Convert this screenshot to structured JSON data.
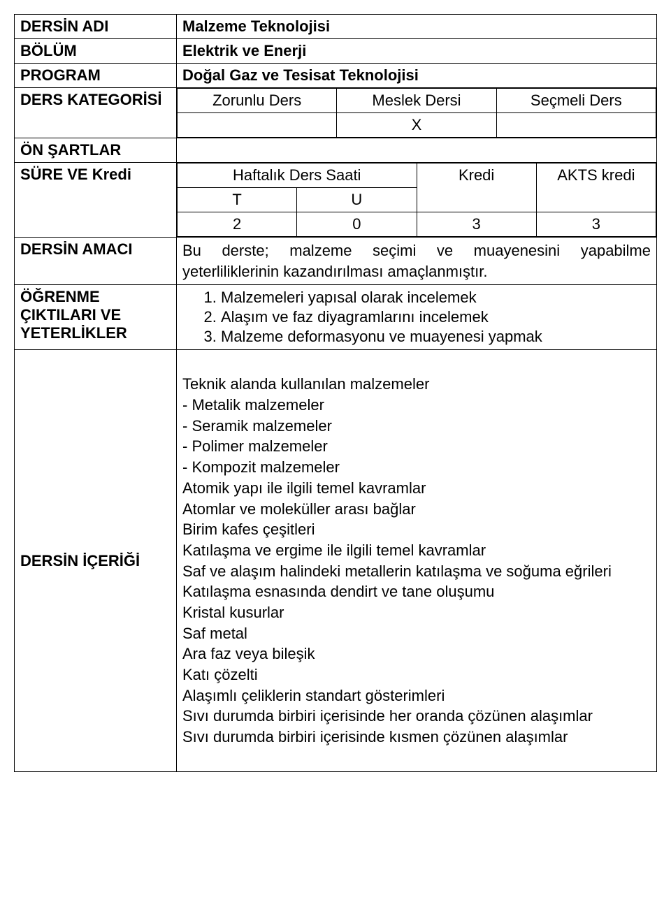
{
  "labels": {
    "dersin_adi": "DERSİN ADI",
    "bolum": "BÖLÜM",
    "program": "PROGRAM",
    "ders_kategorisi": "DERS KATEGORİSİ",
    "on_sartlar": "ÖN ŞARTLAR",
    "sure_ve_kredi": "SÜRE VE Kredi",
    "dersin_amaci": "DERSİN AMACI",
    "ogrenme_ciktilari": "ÖĞRENME ÇIKTILARI VE YETERLİKLER",
    "dersin_icerigi": "DERSİN İÇERİĞİ"
  },
  "values": {
    "dersin_adi": "Malzeme Teknolojisi",
    "bolum": "Elektrik ve Enerji",
    "program": "Doğal Gaz ve Tesisat Teknolojisi",
    "on_sartlar": ""
  },
  "kategori": {
    "headers": [
      "Zorunlu Ders",
      "Meslek Dersi",
      "Seçmeli Ders"
    ],
    "values": [
      "",
      "X",
      ""
    ]
  },
  "sure_kredi": {
    "haftalik_label": "Haftalık Ders Saati",
    "t_label": "T",
    "u_label": "U",
    "kredi_label": "Kredi",
    "akts_label": "AKTS kredi",
    "t_value": "2",
    "u_value": "0",
    "kredi_value": "3",
    "akts_value": "3"
  },
  "amaci_text": "Bu derste; malzeme seçimi ve muayenesini yapabilme yeterliliklerinin kazandırılması amaçlanmıştır.",
  "ciktilar": [
    "Malzemeleri yapısal olarak incelemek",
    "Alaşım ve faz diyagramlarını incelemek",
    "Malzeme deformasyonu ve muayenesi yapmak"
  ],
  "icerik_lines": [
    "Teknik alanda kullanılan malzemeler",
    "- Metalik malzemeler",
    "- Seramik malzemeler",
    "- Polimer malzemeler",
    "- Kompozit malzemeler",
    "Atomik yapı ile ilgili temel kavramlar",
    "Atomlar ve moleküller arası bağlar",
    "Birim kafes çeşitleri",
    "Katılaşma ve ergime ile ilgili temel kavramlar",
    "Saf ve alaşım halindeki metallerin katılaşma ve soğuma eğrileri",
    "Katılaşma esnasında dendirt ve tane oluşumu",
    "Kristal kusurlar",
    "Saf metal",
    "Ara faz veya bileşik",
    "Katı çözelti",
    "Alaşımlı çeliklerin standart gösterimleri",
    "Sıvı durumda birbiri içerisinde her oranda çözünen alaşımlar",
    "Sıvı durumda birbiri içerisinde kısmen çözünen alaşımlar"
  ]
}
